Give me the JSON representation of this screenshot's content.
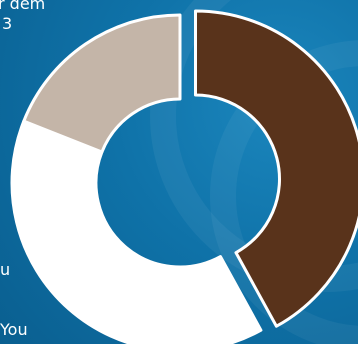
{
  "text_fragments": {
    "top_line": "r dem",
    "digit": "3",
    "left_mid": "u",
    "bottom": "You"
  },
  "chart_data": {
    "type": "donut",
    "title": "",
    "slices": [
      {
        "value": 42,
        "color": "#59331b"
      },
      {
        "value": 39,
        "color": "#ffffff"
      },
      {
        "value": 19,
        "color": "#c4b5a8"
      }
    ]
  }
}
